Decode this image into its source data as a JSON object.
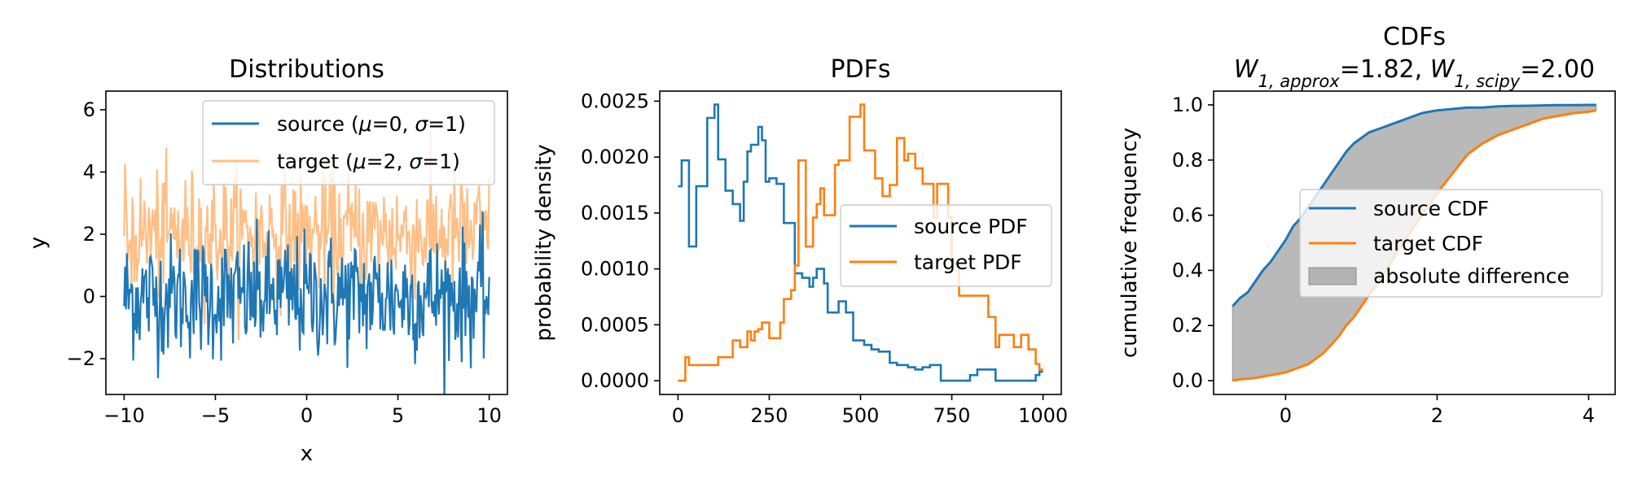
{
  "chart_data": [
    {
      "type": "line",
      "title": "Distributions",
      "xlabel": "x",
      "ylabel": "y",
      "xlim": [
        -11.0,
        11.0
      ],
      "ylim": [
        -3.15,
        6.6
      ],
      "xticks": [
        -10,
        -5,
        0,
        5,
        10
      ],
      "xtick_labels": [
        "−10",
        "−5",
        "0",
        "5",
        "10"
      ],
      "yticks": [
        -2,
        0,
        2,
        4,
        6
      ],
      "ytick_labels": [
        "−2",
        "0",
        "2",
        "4",
        "6"
      ],
      "x_range": [
        -10,
        10
      ],
      "legend": "top-right",
      "series": [
        {
          "name": "source (μ=0, σ=1)",
          "name_parts": [
            [
              "source (",
              ""
            ],
            [
              "μ",
              "i"
            ],
            [
              "=0, ",
              ""
            ],
            [
              "σ",
              "i"
            ],
            [
              "=1)",
              ""
            ]
          ],
          "mean": 0,
          "std": 1,
          "color": "#1f77b4",
          "opacity": 1.0,
          "order": 2
        },
        {
          "name": "target (μ=2, σ=1)",
          "name_parts": [
            [
              "target (",
              ""
            ],
            [
              "μ",
              "i"
            ],
            [
              "=2, ",
              ""
            ],
            [
              "σ",
              "i"
            ],
            [
              "=1)",
              ""
            ]
          ],
          "mean": 2,
          "std": 1,
          "color": "#ff7f0e",
          "opacity": 0.5,
          "order": 1
        }
      ]
    },
    {
      "type": "line",
      "title": "PDFs",
      "xlabel": "",
      "ylabel": "probability density",
      "xlim": [
        -50,
        1050
      ],
      "ylim": [
        -0.000123,
        0.00259
      ],
      "xticks": [
        0,
        250,
        500,
        750,
        1000
      ],
      "xtick_labels": [
        "0",
        "250",
        "500",
        "750",
        "1000"
      ],
      "yticks": [
        0,
        0.0005,
        0.001,
        0.0015,
        0.002,
        0.0025
      ],
      "ytick_labels": [
        "0.0000",
        "0.0005",
        "0.0010",
        "0.0015",
        "0.0020",
        "0.0025"
      ],
      "legend": "center-right",
      "x": [
        0,
        10,
        20,
        30,
        40,
        50,
        60,
        70,
        80,
        90,
        100,
        110,
        120,
        130,
        140,
        150,
        160,
        170,
        180,
        190,
        200,
        210,
        220,
        230,
        240,
        250,
        260,
        270,
        280,
        290,
        300,
        310,
        320,
        330,
        340,
        350,
        360,
        370,
        380,
        390,
        400,
        410,
        420,
        430,
        440,
        450,
        460,
        470,
        480,
        490,
        500,
        510,
        520,
        530,
        540,
        550,
        560,
        570,
        580,
        590,
        600,
        610,
        620,
        630,
        640,
        650,
        660,
        670,
        680,
        690,
        700,
        710,
        720,
        730,
        740,
        750,
        760,
        770,
        780,
        790,
        800,
        810,
        820,
        830,
        840,
        850,
        860,
        870,
        880,
        890,
        900,
        910,
        920,
        930,
        940,
        950,
        960,
        970,
        980,
        990,
        1000
      ],
      "series": [
        {
          "name": "source PDF",
          "color": "#1f77b4",
          "values": [
            0.00174,
            0.00197,
            0.00197,
            0.0012,
            0.0012,
            0.00174,
            0.00174,
            0.00174,
            0.00235,
            0.00235,
            0.00247,
            0.00198,
            0.00198,
            0.0017,
            0.0017,
            0.00158,
            0.00158,
            0.00143,
            0.00178,
            0.00205,
            0.00211,
            0.00211,
            0.00227,
            0.00215,
            0.00178,
            0.00181,
            0.00181,
            0.00176,
            0.00176,
            0.00141,
            0.00141,
            0.00141,
            0.00096,
            0.00096,
            0.00092,
            0.00092,
            0.00084,
            0.00092,
            0.001,
            0.001,
            0.00087,
            0.00061,
            0.00061,
            0.00061,
            0.00071,
            0.00071,
            0.00061,
            0.00061,
            0.00036,
            0.00036,
            0.00036,
            0.00032,
            0.00032,
            0.00028,
            0.00028,
            0.00026,
            0.00026,
            0.00026,
            0.00016,
            0.00016,
            0.00014,
            0.00014,
            0.00014,
            0.00012,
            0.00012,
            0.0001,
            0.0001,
            0.00012,
            0.00012,
            0.00014,
            0.00014,
            0.00014,
            0.0,
            0.0,
            0.0,
            0.0,
            0.0,
            0.0,
            0.0,
            0.0,
            5e-05,
            5e-05,
            0.0001,
            0.0001,
            0.0001,
            0.0001,
            0.0001,
            0.0,
            0.0,
            0.0,
            0.0,
            0.0,
            0.0,
            0.0,
            0.0,
            0.0,
            0.0,
            0.0,
            5e-05,
            8e-05,
            8e-05
          ]
        },
        {
          "name": "target PDF",
          "color": "#ff7f0e",
          "values": [
            0.0,
            0.0,
            0.00021,
            0.00014,
            0.00014,
            0.00014,
            0.00014,
            0.00014,
            0.00014,
            0.00014,
            0.00014,
            0.00021,
            0.00021,
            0.00021,
            0.00021,
            0.00036,
            0.00036,
            0.0003,
            0.0003,
            0.00044,
            0.00036,
            0.00044,
            0.00046,
            0.00052,
            0.00052,
            0.00038,
            0.00038,
            0.00038,
            0.00052,
            0.00073,
            0.00073,
            0.00081,
            0.00103,
            0.00197,
            0.00197,
            0.0012,
            0.0012,
            0.00146,
            0.00158,
            0.00172,
            0.00148,
            0.00148,
            0.00148,
            0.00193,
            0.00197,
            0.00197,
            0.00197,
            0.00236,
            0.00236,
            0.00236,
            0.00247,
            0.00206,
            0.00206,
            0.00206,
            0.00181,
            0.00181,
            0.00165,
            0.00165,
            0.00175,
            0.00175,
            0.00217,
            0.00217,
            0.00197,
            0.00203,
            0.00203,
            0.0019,
            0.0019,
            0.00176,
            0.00176,
            0.00176,
            0.00146,
            0.00176,
            0.00176,
            0.00176,
            0.00146,
            0.00105,
            0.00105,
            0.00076,
            0.00076,
            0.00076,
            0.00076,
            0.00076,
            0.00076,
            0.00076,
            0.00076,
            0.00057,
            0.00057,
            0.0003,
            0.00041,
            0.00041,
            0.00041,
            0.00041,
            0.0003,
            0.0003,
            0.00041,
            0.00041,
            0.00028,
            0.00028,
            0.00015,
            0.0001,
            0.0001
          ]
        }
      ]
    },
    {
      "type": "area",
      "title_line1": "CDFs",
      "title_parts": [
        [
          "W",
          "i"
        ],
        [
          "1, approx",
          "sub"
        ],
        [
          "=1.82, ",
          ""
        ],
        [
          "W",
          "i"
        ],
        [
          "1, scipy",
          "sub"
        ],
        [
          "=2.00",
          ""
        ]
      ],
      "xlabel": "",
      "ylabel": "cumulative frequency",
      "xlim": [
        -0.95,
        4.35
      ],
      "ylim": [
        -0.05,
        1.05
      ],
      "xticks": [
        0,
        2,
        4
      ],
      "xtick_labels": [
        "0",
        "2",
        "4"
      ],
      "yticks": [
        0,
        0.2,
        0.4,
        0.6,
        0.8,
        1.0
      ],
      "ytick_labels": [
        "0.0",
        "0.2",
        "0.4",
        "0.6",
        "0.8",
        "1.0"
      ],
      "legend": "center-right",
      "x": [
        -0.7,
        -0.6,
        -0.5,
        -0.4,
        -0.3,
        -0.2,
        -0.1,
        0.0,
        0.1,
        0.2,
        0.3,
        0.4,
        0.5,
        0.6,
        0.7,
        0.8,
        0.9,
        1.0,
        1.1,
        1.2,
        1.3,
        1.4,
        1.5,
        1.6,
        1.7,
        1.8,
        1.9,
        2.0,
        2.2,
        2.4,
        2.6,
        2.8,
        3.0,
        3.2,
        3.4,
        3.6,
        3.8,
        4.0,
        4.1
      ],
      "series": [
        {
          "name": "source CDF",
          "color": "#1f77b4",
          "values": [
            0.27,
            0.3,
            0.32,
            0.36,
            0.4,
            0.43,
            0.47,
            0.51,
            0.56,
            0.59,
            0.63,
            0.67,
            0.71,
            0.75,
            0.79,
            0.83,
            0.86,
            0.88,
            0.9,
            0.91,
            0.92,
            0.93,
            0.94,
            0.95,
            0.96,
            0.97,
            0.975,
            0.98,
            0.985,
            0.99,
            0.99,
            0.995,
            0.996,
            0.997,
            0.998,
            0.999,
            0.999,
            1.0,
            1.0
          ]
        },
        {
          "name": "target CDF",
          "color": "#ff7f0e",
          "values": [
            0.0,
            0.005,
            0.007,
            0.01,
            0.015,
            0.02,
            0.025,
            0.03,
            0.04,
            0.05,
            0.06,
            0.08,
            0.1,
            0.13,
            0.16,
            0.2,
            0.23,
            0.27,
            0.31,
            0.35,
            0.39,
            0.43,
            0.48,
            0.52,
            0.56,
            0.6,
            0.64,
            0.68,
            0.75,
            0.82,
            0.86,
            0.89,
            0.91,
            0.93,
            0.95,
            0.96,
            0.97,
            0.975,
            0.98
          ]
        }
      ],
      "fill": {
        "name": "absolute difference",
        "color": "#808080",
        "opacity": 0.55
      }
    }
  ]
}
